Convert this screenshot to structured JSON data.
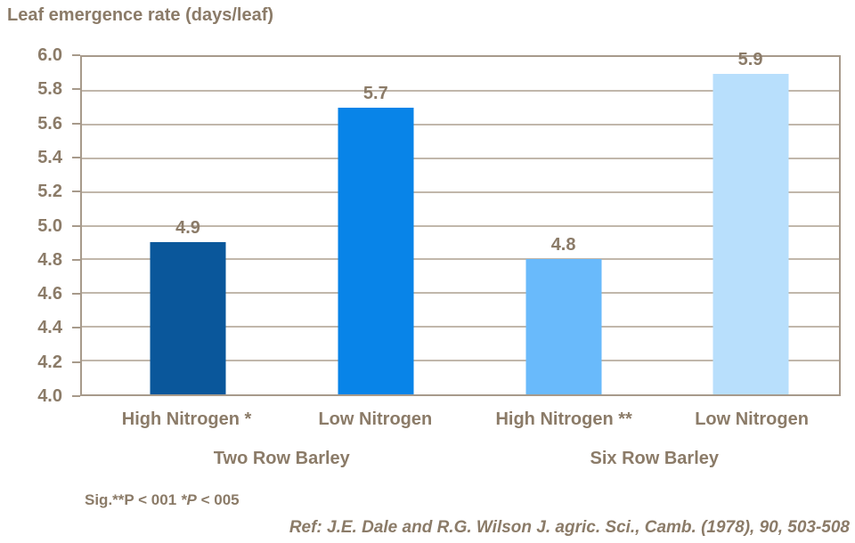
{
  "colors": {
    "text": "#8B7B68",
    "axis_border": "#A79A8B",
    "gridline": "#C1B7AB",
    "background": "#FFFFFF"
  },
  "chart_data": {
    "type": "bar",
    "title": "Leaf emergence rate (days/leaf)",
    "xlabel": "",
    "ylabel": "Leaf emergence rate (days/leaf)",
    "ylim": [
      4.0,
      6.0
    ],
    "ytick_step": 0.2,
    "y_ticks": [
      "6.0",
      "5.8",
      "5.6",
      "5.4",
      "5.2",
      "5.0",
      "4.8",
      "4.6",
      "4.4",
      "4.2",
      "4.0"
    ],
    "grid": true,
    "legend": "none",
    "categories": [
      "High Nitrogen *",
      "Low Nitrogen",
      "High Nitrogen **",
      "Low Nitrogen"
    ],
    "groups": [
      {
        "label": "Two Row Barley",
        "center_pct": 26.5
      },
      {
        "label": "Six Row Barley",
        "center_pct": 75.5
      }
    ],
    "points": [
      {
        "category": "High Nitrogen *",
        "group": "Two Row Barley",
        "value": 4.9,
        "label": "4.9",
        "color": "#0A579B",
        "center_pct": 14.0
      },
      {
        "category": "Low Nitrogen",
        "group": "Two Row Barley",
        "value": 5.7,
        "label": "5.7",
        "color": "#0884E8",
        "center_pct": 38.8
      },
      {
        "category": "High Nitrogen **",
        "group": "Six Row Barley",
        "value": 4.8,
        "label": "4.8",
        "color": "#69BAFB",
        "center_pct": 63.6
      },
      {
        "category": "Low Nitrogen",
        "group": "Six Row Barley",
        "value": 5.9,
        "label": "5.9",
        "color": "#B8DFFC",
        "center_pct": 88.3
      }
    ]
  },
  "footnotes": {
    "significance_segments": [
      {
        "text": "Sig.**P < 001 ",
        "italic": false
      },
      {
        "text": "*P",
        "italic": true
      },
      {
        "text": " < 005",
        "italic": false
      }
    ],
    "reference": "Ref: J.E. Dale and R.G. Wilson J. agric. Sci., Camb. (1978), 90, 503-508"
  }
}
